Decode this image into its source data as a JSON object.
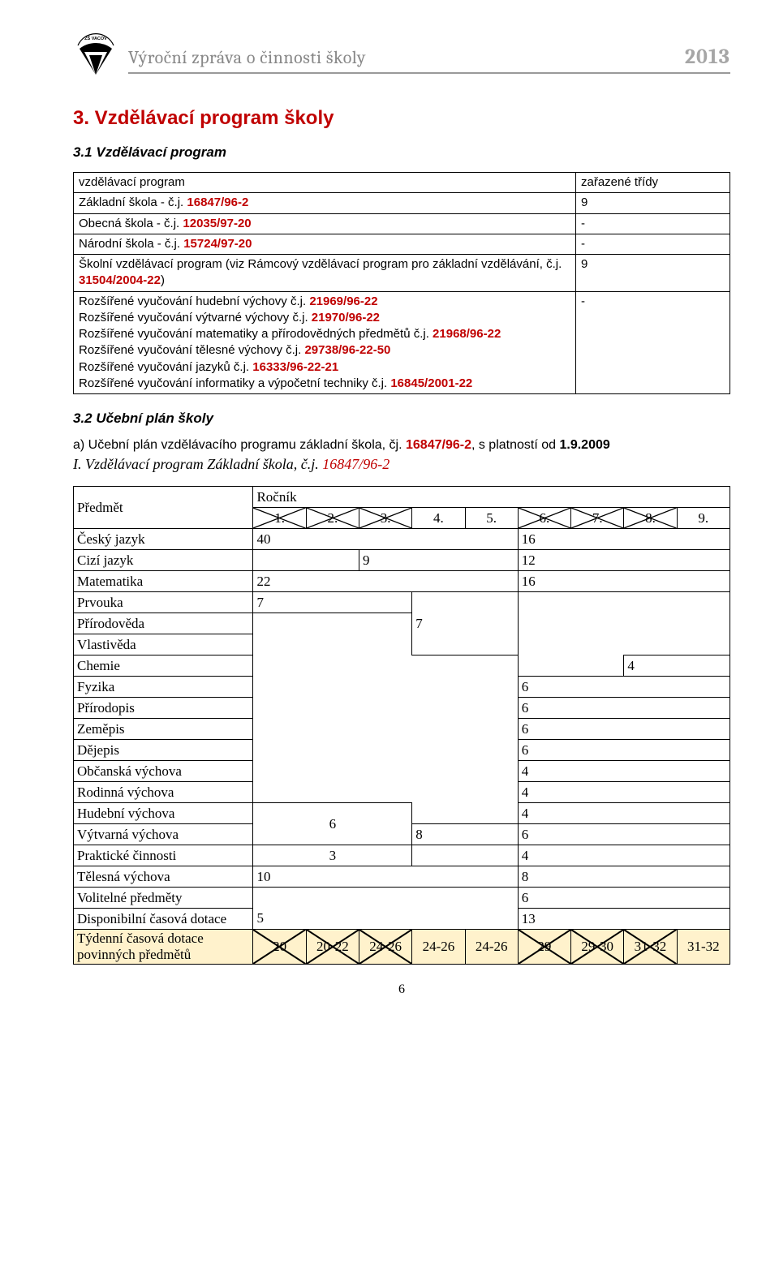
{
  "colors": {
    "accent_red": "#c00000",
    "header_gray": "#888888",
    "year_gray": "#a6a6a6",
    "divider_gray": "#999999",
    "highlight": "#fff2cc",
    "border": "#000000",
    "text": "#000000",
    "bg": "#ffffff"
  },
  "header": {
    "title": "Výroční zpráva o činnosti školy",
    "year": "2013",
    "logo_top_text": "ZŠ VACOV"
  },
  "section3": {
    "h1": "3. Vzdělávací program školy",
    "h2_1": "3.1 Vzdělávací program",
    "table": {
      "head_program": "vzdělávací program",
      "head_classes": "zařazené třídy",
      "rows": [
        {
          "program_html": "Základní škola - č.j. <span class='redbold'>16847/96-2</span>",
          "classes": "9"
        },
        {
          "program_html": "Obecná škola - č.j. <span class='redbold'>12035/97-20</span>",
          "classes": "-"
        },
        {
          "program_html": "Národní škola - č.j. <span class='redbold'>15724/97-20</span>",
          "classes": "-"
        },
        {
          "program_html": "Školní vzdělávací program (viz Rámcový vzdělávací program pro základní vzdělávání, č.j. <span class='redbold'>31504/2004-22</span>)",
          "classes": "9"
        },
        {
          "program_html": "Rozšířené vyučování hudební výchovy č.j. <span class='redbold'>21969/96-22</span><br>Rozšířené vyučování výtvarné výchovy č.j. <span class='redbold'>21970/96-22</span><br>Rozšířené vyučování matematiky a přírodovědných předmětů č.j. <span class='redbold'>21968/96-22</span><br>Rozšířené vyučování tělesné výchovy č.j. <span class='redbold'>29738/96-22-50</span><br>Rozšířené vyučování jazyků č.j. <span class='redbold'>16333/96-22-21</span><br>Rozšířené vyučování informatiky a výpočetní techniky č.j. <span class='redbold'>16845/2001-22</span>",
          "classes": "-"
        }
      ]
    },
    "h2_2": "3.2 Učební plán školy",
    "plan_a_intro_html": "a) Učební plán vzdělávacího programu základní škola, čj. <span class='redbold'>16847/96-2</span>, s platností od <b>1.9.2009</b>",
    "plan_a_subtitle_html": "I. Vzdělávací program Základní škola, č.j. <span class='red'>16847/96-2</span>"
  },
  "curriculum": {
    "header_subject": "Předmět",
    "header_grade": "Ročník",
    "grade_labels": [
      "1.",
      "2.",
      "3.",
      "4.",
      "5.",
      "6.",
      "7.",
      "8.",
      "9."
    ],
    "strike_grades": [
      true,
      true,
      true,
      false,
      false,
      true,
      true,
      true,
      false
    ],
    "rows": {
      "cesky": {
        "label": "Český jazyk",
        "block1": "40",
        "block2": "16"
      },
      "cizi": {
        "label": "Cizí jazyk",
        "block1": "9",
        "block2": "12"
      },
      "mat": {
        "label": "Matematika",
        "block1": "22",
        "block2": "16"
      },
      "prvouka": {
        "label": "Prvouka",
        "block1": "7"
      },
      "prirodoveda": {
        "label": "Přírodověda"
      },
      "vlastiveda": {
        "label": "Vlastivěda"
      },
      "prirodoveda_block": "7",
      "chemie": {
        "label": "Chemie",
        "val": "4"
      },
      "fyzika": {
        "label": "Fyzika",
        "val": "6"
      },
      "prirodopis": {
        "label": "Přírodopis",
        "val": "6"
      },
      "zemepis": {
        "label": "Zeměpis",
        "val": "6"
      },
      "dejepis": {
        "label": "Dějepis",
        "val": "6"
      },
      "obcan": {
        "label": "Občanská výchova",
        "val": "4"
      },
      "rodin": {
        "label": "Rodinná výchova",
        "val": "4"
      },
      "hudebni": {
        "label": "Hudební výchova",
        "val": "4"
      },
      "vytvarna": {
        "label": "Výtvarná výchova",
        "block1": "6",
        "block2": "8",
        "val": "6"
      },
      "prakticke": {
        "label": "Praktické činnosti",
        "block1": "3",
        "val": "4"
      },
      "telesna": {
        "label": "Tělesná výchova",
        "block1": "10",
        "val": "8"
      },
      "volitelne": {
        "label": "Volitelné předměty",
        "val": "6"
      },
      "disponibilni": {
        "label": "Disponibilní časová dotace",
        "block1": "5",
        "val": "13"
      },
      "tydenni": {
        "label": "Týdenní časová dotace povinných předmětů",
        "cells": [
          "20",
          "20-22",
          "24-26",
          "24-26",
          "24-26",
          "29",
          "29-30",
          "31-32",
          "31-32"
        ],
        "strike": [
          true,
          true,
          true,
          false,
          false,
          true,
          true,
          true,
          false
        ]
      }
    }
  },
  "page_number": "6"
}
